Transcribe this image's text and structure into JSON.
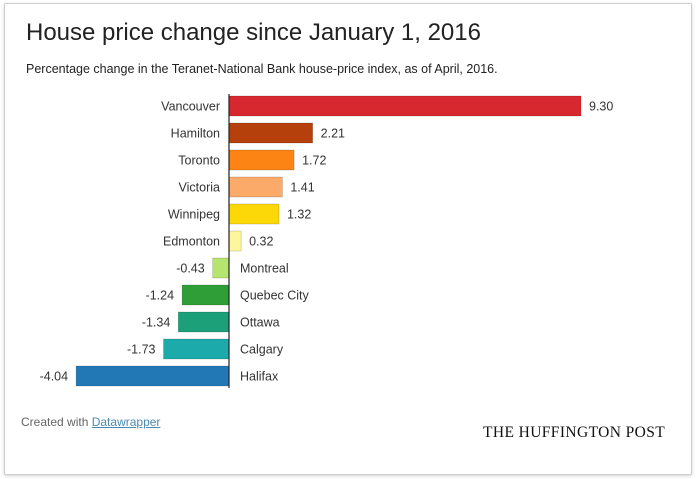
{
  "chart_data": {
    "type": "bar",
    "orientation": "horizontal",
    "title": "House price change since January 1, 2016",
    "subtitle": "Percentage change in the Teranet-National Bank house-price index, as of April, 2016.",
    "categories": [
      "Vancouver",
      "Hamilton",
      "Toronto",
      "Victoria",
      "Winnipeg",
      "Edmonton",
      "Montreal",
      "Quebec City",
      "Ottawa",
      "Calgary",
      "Halifax"
    ],
    "values": [
      9.3,
      2.21,
      1.72,
      1.41,
      1.32,
      0.32,
      -0.43,
      -1.24,
      -1.34,
      -1.73,
      -4.04
    ],
    "value_labels": [
      "9.30",
      "2.21",
      "1.72",
      "1.41",
      "1.32",
      "0.32",
      "-0.43",
      "-1.24",
      "-1.34",
      "-1.73",
      "-4.04"
    ],
    "colors": [
      "#d7272f",
      "#b5400b",
      "#fb8414",
      "#fcaa6a",
      "#fcd809",
      "#fdf69c",
      "#b5e56e",
      "#2f9e36",
      "#1ca07a",
      "#1caaaa",
      "#2278b5"
    ],
    "xlim": [
      -4.04,
      9.3
    ],
    "grid": false,
    "legend": "none"
  },
  "footer": {
    "credit_prefix": "Created with",
    "credit_link": "Datawrapper",
    "brand": "THE HUFFINGTON POST"
  }
}
